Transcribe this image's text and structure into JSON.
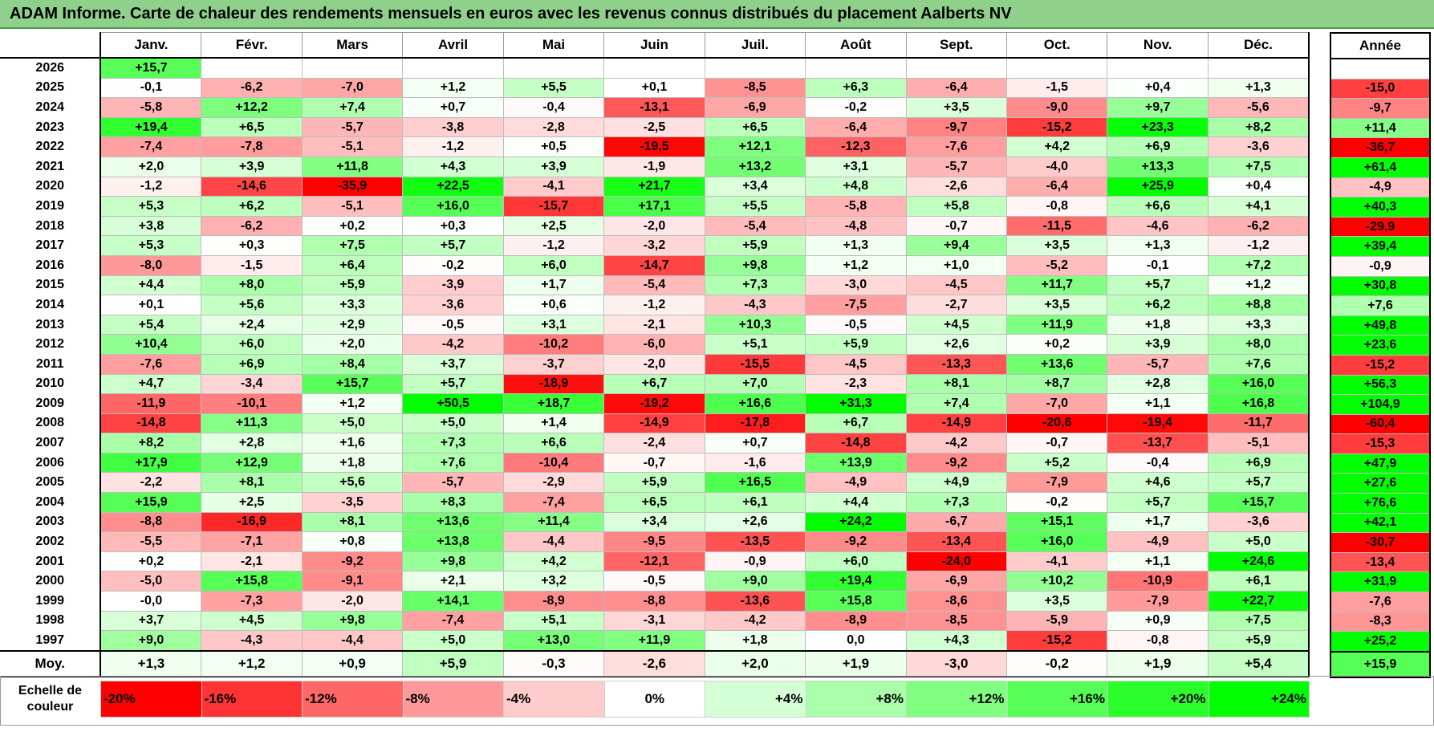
{
  "title": "ADAM Informe. Carte de chaleur des rendements mensuels en euros avec les revenus connus distribués du placement Aalberts NV",
  "months": [
    "Janv.",
    "Févr.",
    "Mars",
    "Avril",
    "Mai",
    "Juin",
    "Juil.",
    "Août",
    "Sept.",
    "Oct.",
    "Nov.",
    "Déc."
  ],
  "annual_header": "Année",
  "average_label": "Moy.",
  "scale_label": "Echelle de couleur",
  "colors": {
    "red": "#ff0000",
    "white": "#ffffff",
    "green": "#00ff00",
    "title_bg": "#8fd18a"
  },
  "chart_data": {
    "type": "heatmap",
    "title": "ADAM Informe. Carte de chaleur des rendements mensuels en euros avec les revenus connus distribués du placement Aalberts NV",
    "columns": [
      "Janv.",
      "Févr.",
      "Mars",
      "Avril",
      "Mai",
      "Juin",
      "Juil.",
      "Août",
      "Sept.",
      "Oct.",
      "Nov.",
      "Déc."
    ],
    "color_scale": {
      "min": -20,
      "mid": 0,
      "max": 24,
      "min_color": "#ff0000",
      "mid_color": "#ffffff",
      "max_color": "#00ff00"
    },
    "rows": [
      {
        "year": "2026",
        "values": [
          "+15,7",
          "",
          "",
          "",
          "",
          "",
          "",
          "",
          "",
          "",
          "",
          ""
        ],
        "annual": ""
      },
      {
        "year": "2025",
        "values": [
          "-0,1",
          "-6,2",
          "-7,0",
          "+1,2",
          "+5,5",
          "+0,1",
          "-8,5",
          "+6,3",
          "-6,4",
          "-1,5",
          "+0,4",
          "+1,3"
        ],
        "annual": "-15,0"
      },
      {
        "year": "2024",
        "values": [
          "-5,8",
          "+12,2",
          "+7,4",
          "+0,7",
          "-0,4",
          "-13,1",
          "-6,9",
          "-0,2",
          "+3,5",
          "-9,0",
          "+9,7",
          "-5,6"
        ],
        "annual": "-9,7"
      },
      {
        "year": "2023",
        "values": [
          "+19,4",
          "+6,5",
          "-5,7",
          "-3,8",
          "-2,8",
          "-2,5",
          "+6,5",
          "-6,4",
          "-9,7",
          "-15,2",
          "+23,3",
          "+8,2"
        ],
        "annual": "+11,4"
      },
      {
        "year": "2022",
        "values": [
          "-7,4",
          "-7,8",
          "-5,1",
          "-1,2",
          "+0,5",
          "-19,5",
          "+12,1",
          "-12,3",
          "-7,6",
          "+4,2",
          "+6,9",
          "-3,6"
        ],
        "annual": "-36,7"
      },
      {
        "year": "2021",
        "values": [
          "+2,0",
          "+3,9",
          "+11,8",
          "+4,3",
          "+3,9",
          "-1,9",
          "+13,2",
          "+3,1",
          "-5,7",
          "-4,0",
          "+13,3",
          "+7,5"
        ],
        "annual": "+61,4"
      },
      {
        "year": "2020",
        "values": [
          "-1,2",
          "-14,6",
          "-35,9",
          "+22,5",
          "-4,1",
          "+21,7",
          "+3,4",
          "+4,8",
          "-2,6",
          "-6,4",
          "+25,9",
          "+0,4"
        ],
        "annual": "-4,9"
      },
      {
        "year": "2019",
        "values": [
          "+5,3",
          "+6,2",
          "-5,1",
          "+16,0",
          "-15,7",
          "+17,1",
          "+5,5",
          "-5,8",
          "+5,8",
          "-0,8",
          "+6,6",
          "+4,1"
        ],
        "annual": "+40,3"
      },
      {
        "year": "2018",
        "values": [
          "+3,8",
          "-6,2",
          "+0,2",
          "+0,3",
          "+2,5",
          "-2,0",
          "-5,4",
          "-4,8",
          "-0,7",
          "-11,5",
          "-4,6",
          "-6,2"
        ],
        "annual": "-29,9"
      },
      {
        "year": "2017",
        "values": [
          "+5,3",
          "+0,3",
          "+7,5",
          "+5,7",
          "-1,2",
          "-3,2",
          "+5,9",
          "+1,3",
          "+9,4",
          "+3,5",
          "+1,3",
          "-1,2"
        ],
        "annual": "+39,4"
      },
      {
        "year": "2016",
        "values": [
          "-8,0",
          "-1,5",
          "+6,4",
          "-0,2",
          "+6,0",
          "-14,7",
          "+9,8",
          "+1,2",
          "+1,0",
          "-5,2",
          "-0,1",
          "+7,2"
        ],
        "annual": "-0,9"
      },
      {
        "year": "2015",
        "values": [
          "+4,4",
          "+8,0",
          "+5,9",
          "-3,9",
          "+1,7",
          "-5,4",
          "+7,3",
          "-3,0",
          "-4,5",
          "+11,7",
          "+5,7",
          "+1,2"
        ],
        "annual": "+30,8"
      },
      {
        "year": "2014",
        "values": [
          "+0,1",
          "+5,6",
          "+3,3",
          "-3,6",
          "+0,6",
          "-1,2",
          "-4,3",
          "-7,5",
          "-2,7",
          "+3,5",
          "+6,2",
          "+8,8"
        ],
        "annual": "+7,6"
      },
      {
        "year": "2013",
        "values": [
          "+5,4",
          "+2,4",
          "+2,9",
          "-0,5",
          "+3,1",
          "-2,1",
          "+10,3",
          "-0,5",
          "+4,5",
          "+11,9",
          "+1,8",
          "+3,3"
        ],
        "annual": "+49,8"
      },
      {
        "year": "2012",
        "values": [
          "+10,4",
          "+6,0",
          "+2,0",
          "-4,2",
          "-10,2",
          "-6,0",
          "+5,1",
          "+5,9",
          "+2,6",
          "+0,2",
          "+3,9",
          "+8,0"
        ],
        "annual": "+23,6"
      },
      {
        "year": "2011",
        "values": [
          "-7,6",
          "+6,9",
          "+8,4",
          "+3,7",
          "-3,7",
          "-2,0",
          "-15,5",
          "-4,5",
          "-13,3",
          "+13,6",
          "-5,7",
          "+7,6"
        ],
        "annual": "-15,2"
      },
      {
        "year": "2010",
        "values": [
          "+4,7",
          "-3,4",
          "+15,7",
          "+5,7",
          "-18,9",
          "+6,7",
          "+7,0",
          "-2,3",
          "+8,1",
          "+8,7",
          "+2,8",
          "+16,0"
        ],
        "annual": "+56,3"
      },
      {
        "year": "2009",
        "values": [
          "-11,9",
          "-10,1",
          "+1,2",
          "+50,5",
          "+18,7",
          "-19,2",
          "+16,6",
          "+31,3",
          "+7,4",
          "-7,0",
          "+1,1",
          "+16,8"
        ],
        "annual": "+104,9"
      },
      {
        "year": "2008",
        "values": [
          "-14,8",
          "+11,3",
          "+5,0",
          "+5,0",
          "+1,4",
          "-14,9",
          "-17,8",
          "+6,7",
          "-14,9",
          "-20,6",
          "-19,4",
          "-11,7"
        ],
        "annual": "-60,4"
      },
      {
        "year": "2007",
        "values": [
          "+8,2",
          "+2,8",
          "+1,6",
          "+7,3",
          "+6,6",
          "-2,4",
          "+0,7",
          "-14,8",
          "-4,2",
          "-0,7",
          "-13,7",
          "-5,1"
        ],
        "annual": "-15,3"
      },
      {
        "year": "2006",
        "values": [
          "+17,9",
          "+12,9",
          "+1,8",
          "+7,6",
          "-10,4",
          "-0,7",
          "-1,6",
          "+13,9",
          "-9,2",
          "+5,2",
          "-0,4",
          "+6,9"
        ],
        "annual": "+47,9"
      },
      {
        "year": "2005",
        "values": [
          "-2,2",
          "+8,1",
          "+5,6",
          "-5,7",
          "-2,9",
          "+5,9",
          "+16,5",
          "-4,9",
          "+4,9",
          "-7,9",
          "+4,6",
          "+5,7"
        ],
        "annual": "+27,6"
      },
      {
        "year": "2004",
        "values": [
          "+15,9",
          "+2,5",
          "-3,5",
          "+8,3",
          "-7,4",
          "+6,5",
          "+6,1",
          "+4,4",
          "+7,3",
          "-0,2",
          "+5,7",
          "+15,7"
        ],
        "annual": "+76,6"
      },
      {
        "year": "2003",
        "values": [
          "-8,8",
          "-16,9",
          "+8,1",
          "+13,6",
          "+11,4",
          "+3,4",
          "+2,6",
          "+24,2",
          "-6,7",
          "+15,1",
          "+1,7",
          "-3,6"
        ],
        "annual": "+42,1"
      },
      {
        "year": "2002",
        "values": [
          "-5,5",
          "-7,1",
          "+0,8",
          "+13,8",
          "-4,4",
          "-9,5",
          "-13,5",
          "-9,2",
          "-13,4",
          "+16,0",
          "-4,9",
          "+5,0"
        ],
        "annual": "-30,7"
      },
      {
        "year": "2001",
        "values": [
          "+0,2",
          "-2,1",
          "-9,2",
          "+9,8",
          "+4,2",
          "-12,1",
          "-0,9",
          "+6,0",
          "-24,0",
          "-4,1",
          "+1,1",
          "+24,6"
        ],
        "annual": "-13,4"
      },
      {
        "year": "2000",
        "values": [
          "-5,0",
          "+15,8",
          "-9,1",
          "+2,1",
          "+3,2",
          "-0,5",
          "+9,0",
          "+19,4",
          "-6,9",
          "+10,2",
          "-10,9",
          "+6,1"
        ],
        "annual": "+31,9"
      },
      {
        "year": "1999",
        "values": [
          "-0,0",
          "-7,3",
          "-2,0",
          "+14,1",
          "-8,9",
          "-8,8",
          "-13,6",
          "+15,8",
          "-8,6",
          "+3,5",
          "-7,9",
          "+22,7"
        ],
        "annual": "-7,6"
      },
      {
        "year": "1998",
        "values": [
          "+3,7",
          "+4,5",
          "+9,8",
          "-7,4",
          "+5,1",
          "-3,1",
          "-4,2",
          "-8,9",
          "-8,5",
          "-5,9",
          "+0,9",
          "+7,5"
        ],
        "annual": "-8,3"
      },
      {
        "year": "1997",
        "values": [
          "+9,0",
          "-4,3",
          "-4,4",
          "+5,0",
          "+13,0",
          "+11,9",
          "+1,8",
          "0,0",
          "+4,3",
          "-15,2",
          "-0,8",
          "+5,9"
        ],
        "annual": "+25,2"
      }
    ],
    "average": {
      "values": [
        "+1,3",
        "+1,2",
        "+0,9",
        "+5,9",
        "-0,3",
        "-2,6",
        "+2,0",
        "+1,9",
        "-3,0",
        "-0,2",
        "+1,9",
        "+5,4"
      ],
      "annual": "+15,9"
    },
    "scale": [
      "-20%",
      "-16%",
      "-12%",
      "-8%",
      "-4%",
      "0%",
      "+4%",
      "+8%",
      "+12%",
      "+16%",
      "+20%",
      "+24%"
    ]
  }
}
